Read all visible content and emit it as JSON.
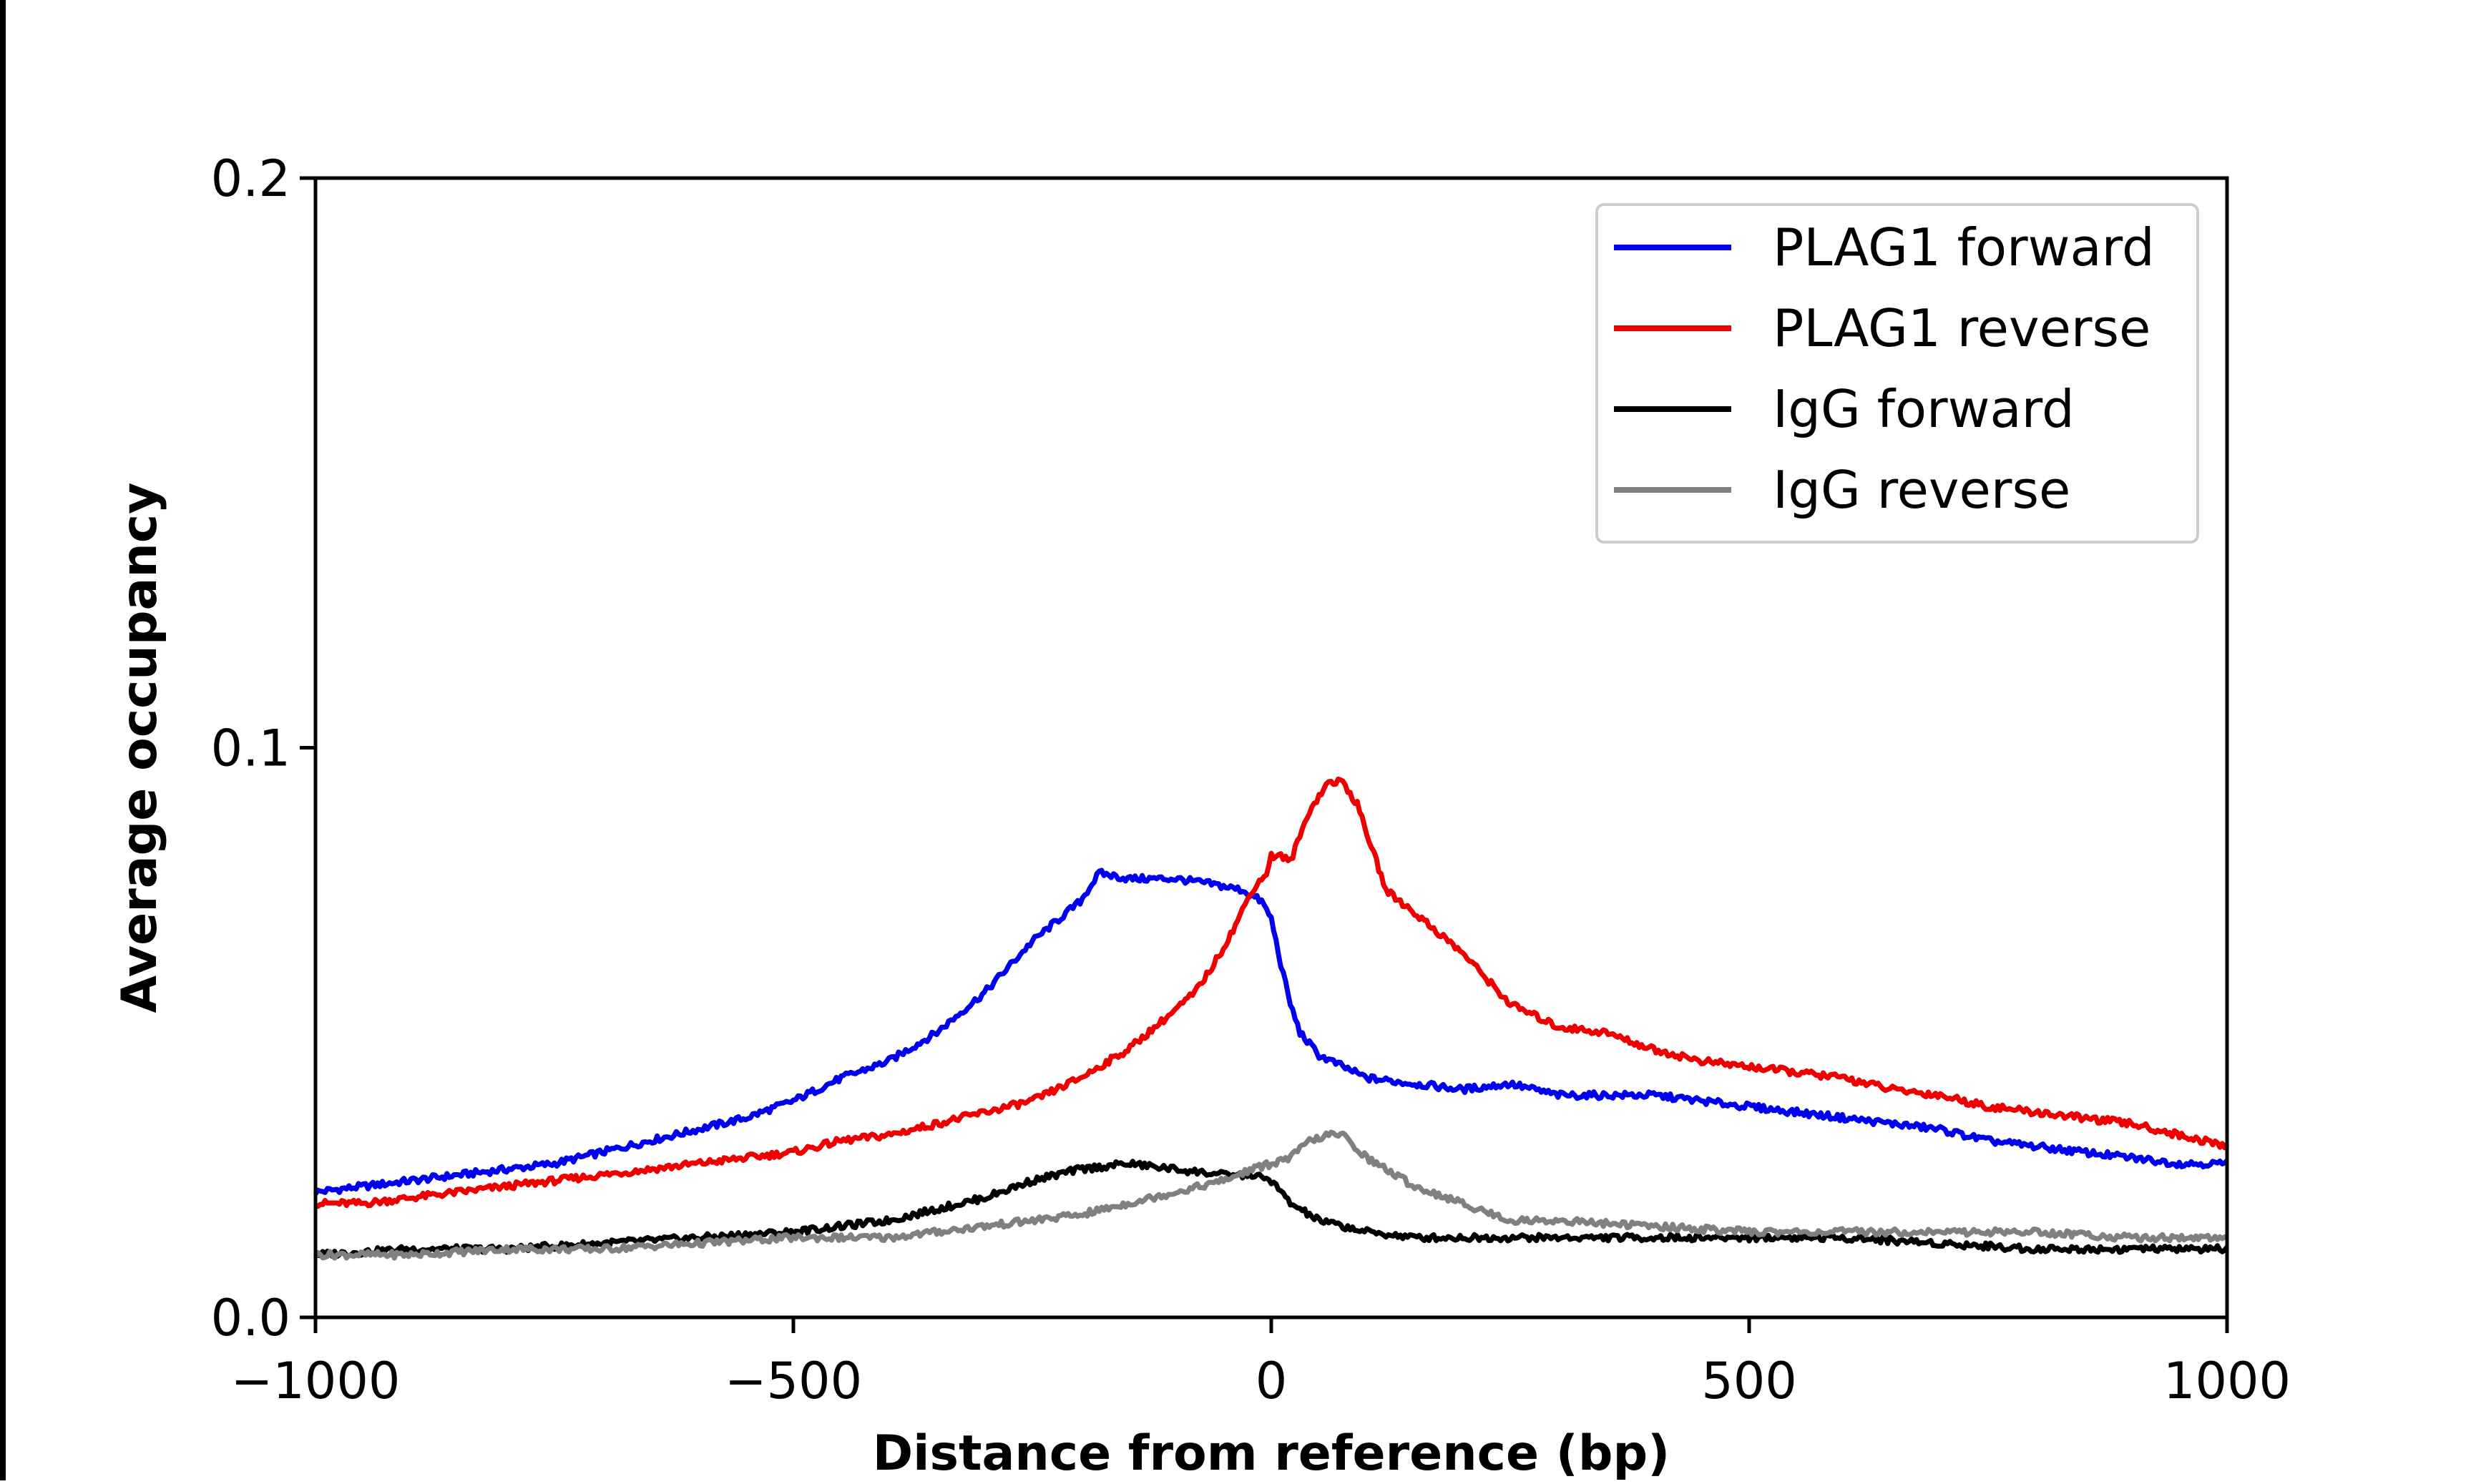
{
  "chart_data": {
    "type": "line",
    "xlabel": "Distance from reference (bp)",
    "ylabel": "Average occupancy",
    "xlim": [
      -1000,
      1000
    ],
    "ylim": [
      0,
      0.2
    ],
    "x_ticks": [
      -1000,
      -500,
      0,
      500,
      1000
    ],
    "x_tick_labels": [
      "−1000",
      "−500",
      "0",
      "500",
      "1000"
    ],
    "y_ticks": [
      0,
      0.1,
      0.2
    ],
    "y_tick_labels": [
      "0.0",
      "0.1",
      "0.2"
    ],
    "grid": false,
    "legend_position": "top-right",
    "series": [
      {
        "name": "PLAG1 forward",
        "color": "#0000ee",
        "x": [
          -1000,
          -950,
          -900,
          -850,
          -800,
          -750,
          -700,
          -650,
          -600,
          -550,
          -500,
          -450,
          -400,
          -350,
          -300,
          -250,
          -200,
          -180,
          -150,
          -100,
          -60,
          -30,
          -10,
          0,
          10,
          20,
          30,
          50,
          75,
          100,
          150,
          200,
          250,
          300,
          350,
          400,
          450,
          500,
          550,
          600,
          650,
          700,
          750,
          800,
          850,
          900,
          950,
          1000
        ],
        "y": [
          0.022,
          0.023,
          0.024,
          0.025,
          0.026,
          0.027,
          0.029,
          0.031,
          0.033,
          0.035,
          0.038,
          0.042,
          0.045,
          0.05,
          0.057,
          0.066,
          0.073,
          0.078,
          0.077,
          0.077,
          0.076,
          0.075,
          0.073,
          0.07,
          0.062,
          0.055,
          0.05,
          0.046,
          0.044,
          0.042,
          0.041,
          0.04,
          0.041,
          0.039,
          0.039,
          0.039,
          0.038,
          0.037,
          0.036,
          0.035,
          0.034,
          0.033,
          0.031,
          0.03,
          0.029,
          0.028,
          0.027,
          0.027
        ]
      },
      {
        "name": "PLAG1 reverse",
        "color": "#ee0000",
        "x": [
          -1000,
          -950,
          -900,
          -850,
          -800,
          -750,
          -700,
          -650,
          -600,
          -550,
          -500,
          -450,
          -400,
          -350,
          -300,
          -250,
          -200,
          -150,
          -100,
          -80,
          -60,
          -40,
          -20,
          -5,
          0,
          10,
          20,
          40,
          60,
          75,
          90,
          100,
          120,
          150,
          200,
          250,
          300,
          350,
          400,
          450,
          500,
          550,
          600,
          650,
          700,
          750,
          800,
          850,
          900,
          950,
          1000
        ],
        "y": [
          0.02,
          0.02,
          0.021,
          0.022,
          0.023,
          0.024,
          0.025,
          0.026,
          0.027,
          0.028,
          0.029,
          0.031,
          0.032,
          0.034,
          0.036,
          0.038,
          0.042,
          0.047,
          0.054,
          0.057,
          0.062,
          0.068,
          0.075,
          0.078,
          0.081,
          0.081,
          0.08,
          0.089,
          0.094,
          0.094,
          0.09,
          0.085,
          0.075,
          0.071,
          0.064,
          0.055,
          0.051,
          0.05,
          0.047,
          0.045,
          0.044,
          0.043,
          0.042,
          0.04,
          0.039,
          0.037,
          0.036,
          0.035,
          0.034,
          0.032,
          0.03
        ]
      },
      {
        "name": "IgG forward",
        "color": "#000000",
        "x": [
          -1000,
          -900,
          -800,
          -700,
          -600,
          -500,
          -400,
          -300,
          -250,
          -200,
          -150,
          -100,
          -50,
          -20,
          0,
          20,
          50,
          100,
          150,
          200,
          300,
          400,
          500,
          600,
          700,
          800,
          900,
          1000
        ],
        "y": [
          0.011,
          0.012,
          0.012,
          0.013,
          0.014,
          0.015,
          0.017,
          0.021,
          0.024,
          0.026,
          0.027,
          0.026,
          0.025,
          0.025,
          0.024,
          0.02,
          0.017,
          0.015,
          0.014,
          0.014,
          0.014,
          0.014,
          0.014,
          0.014,
          0.013,
          0.012,
          0.012,
          0.012
        ]
      },
      {
        "name": "IgG reverse",
        "color": "#808080",
        "x": [
          -1000,
          -900,
          -800,
          -700,
          -600,
          -500,
          -400,
          -300,
          -200,
          -100,
          -50,
          -20,
          0,
          20,
          40,
          60,
          75,
          100,
          150,
          200,
          250,
          300,
          400,
          500,
          600,
          700,
          800,
          900,
          1000
        ],
        "y": [
          0.011,
          0.011,
          0.012,
          0.012,
          0.013,
          0.014,
          0.014,
          0.016,
          0.018,
          0.022,
          0.024,
          0.026,
          0.027,
          0.028,
          0.031,
          0.032,
          0.032,
          0.028,
          0.023,
          0.02,
          0.017,
          0.017,
          0.016,
          0.015,
          0.015,
          0.015,
          0.015,
          0.014,
          0.014
        ]
      }
    ]
  }
}
